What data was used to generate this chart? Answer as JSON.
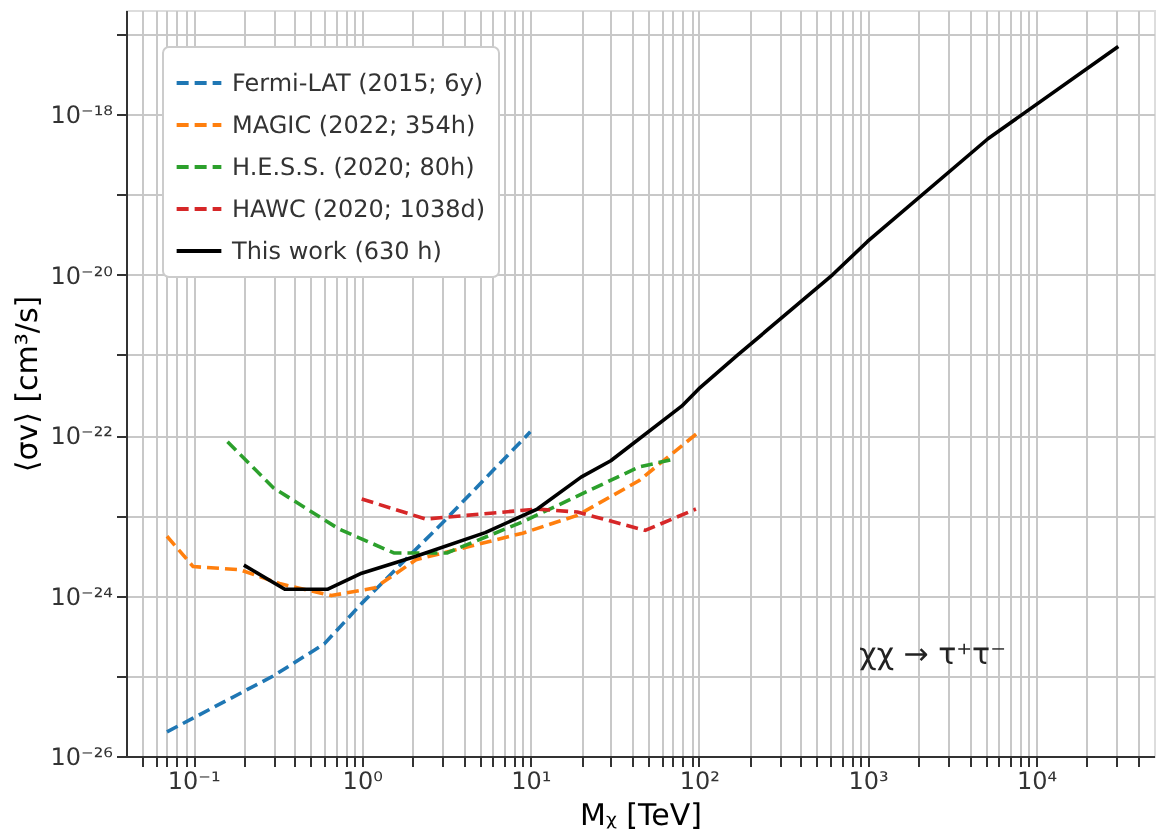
{
  "chart_data": {
    "type": "line",
    "xlabel": "Mᵪ [TeV]",
    "ylabel": "⟨σv⟩ [cm³/s]",
    "log": "xy",
    "grid": true,
    "legend": "top left",
    "marker": "none",
    "xlim": [
      0.04,
      50000
    ],
    "ylim": [
      1e-26,
      2e-17
    ],
    "xticks": [
      {
        "value": 0.05,
        "label": null
      },
      {
        "value": 0.06,
        "label": null
      },
      {
        "value": 0.07,
        "label": null
      },
      {
        "value": 0.08,
        "label": null
      },
      {
        "value": 0.09,
        "label": null
      },
      {
        "value": 0.1,
        "label": "10⁻¹"
      },
      {
        "value": 0.2,
        "label": null
      },
      {
        "value": 0.3,
        "label": null
      },
      {
        "value": 0.4,
        "label": null
      },
      {
        "value": 0.5,
        "label": null
      },
      {
        "value": 0.6,
        "label": null
      },
      {
        "value": 0.7,
        "label": null
      },
      {
        "value": 0.8,
        "label": null
      },
      {
        "value": 0.9,
        "label": null
      },
      {
        "value": 1,
        "label": "10⁰"
      },
      {
        "value": 2,
        "label": null
      },
      {
        "value": 3,
        "label": null
      },
      {
        "value": 4,
        "label": null
      },
      {
        "value": 5,
        "label": null
      },
      {
        "value": 6,
        "label": null
      },
      {
        "value": 7,
        "label": null
      },
      {
        "value": 8,
        "label": null
      },
      {
        "value": 9,
        "label": null
      },
      {
        "value": 10,
        "label": "10¹"
      },
      {
        "value": 20,
        "label": null
      },
      {
        "value": 30,
        "label": null
      },
      {
        "value": 40,
        "label": null
      },
      {
        "value": 50,
        "label": null
      },
      {
        "value": 60,
        "label": null
      },
      {
        "value": 70,
        "label": null
      },
      {
        "value": 80,
        "label": null
      },
      {
        "value": 90,
        "label": null
      },
      {
        "value": 100,
        "label": "10²"
      },
      {
        "value": 200,
        "label": null
      },
      {
        "value": 300,
        "label": null
      },
      {
        "value": 400,
        "label": null
      },
      {
        "value": 500,
        "label": null
      },
      {
        "value": 600,
        "label": null
      },
      {
        "value": 700,
        "label": null
      },
      {
        "value": 800,
        "label": null
      },
      {
        "value": 900,
        "label": null
      },
      {
        "value": 1000,
        "label": "10³"
      },
      {
        "value": 2000,
        "label": null
      },
      {
        "value": 3000,
        "label": null
      },
      {
        "value": 4000,
        "label": null
      },
      {
        "value": 5000,
        "label": null
      },
      {
        "value": 6000,
        "label": null
      },
      {
        "value": 7000,
        "label": null
      },
      {
        "value": 8000,
        "label": null
      },
      {
        "value": 9000,
        "label": null
      },
      {
        "value": 10000,
        "label": "10⁴"
      },
      {
        "value": 20000,
        "label": null
      },
      {
        "value": 30000,
        "label": null
      },
      {
        "value": 40000,
        "label": null
      }
    ],
    "yticks": [
      {
        "value": 1e-26,
        "label": "10⁻²⁶"
      },
      {
        "value": 1e-25,
        "label": null
      },
      {
        "value": 1e-24,
        "label": "10⁻²⁴"
      },
      {
        "value": 1e-23,
        "label": null
      },
      {
        "value": 1e-22,
        "label": "10⁻²²"
      },
      {
        "value": 1e-21,
        "label": null
      },
      {
        "value": 1e-20,
        "label": "10⁻²⁰"
      },
      {
        "value": 1e-19,
        "label": null
      },
      {
        "value": 1e-18,
        "label": "10⁻¹⁸"
      },
      {
        "value": 1e-17,
        "label": null
      }
    ],
    "series": [
      {
        "name": "Fermi-LAT (2015; 6y)",
        "color": "#1f77b4",
        "line_style": "dashed",
        "x": [
          0.07,
          0.3,
          0.6,
          1,
          3,
          10
        ],
        "values": [
          2e-26,
          1e-25,
          2.5e-25,
          8e-25,
          8e-24,
          1.1e-22
        ]
      },
      {
        "name": "MAGIC (2022; 354h)",
        "color": "#ff7f0e",
        "line_style": "dashed",
        "x": [
          0.07,
          0.1,
          0.19,
          0.33,
          0.66,
          1.2,
          2.1,
          9,
          19,
          44,
          100
        ],
        "values": [
          5.5e-24,
          2.3e-24,
          2.1e-24,
          1.4e-24,
          1e-24,
          1.25e-24,
          2.8e-24,
          6e-24,
          1e-23,
          2.7e-23,
          1.1e-22
        ]
      },
      {
        "name": "H.E.S.S. (2020; 80h)",
        "color": "#2ca02c",
        "line_style": "dashed",
        "x": [
          0.16,
          0.3,
          0.73,
          1.55,
          3.2,
          9,
          44,
          70
        ],
        "values": [
          8.3e-23,
          2.2e-23,
          6.8e-24,
          3.4e-24,
          3.4e-24,
          8.3e-24,
          4e-23,
          5e-23
        ]
      },
      {
        "name": "HAWC (2020; 1038d)",
        "color": "#d62728",
        "line_style": "dashed",
        "x": [
          1,
          2.4,
          11,
          19,
          48,
          96
        ],
        "values": [
          1.6e-23,
          9e-24,
          1.2e-23,
          1.1e-23,
          6.5e-24,
          1.2e-23
        ]
      },
      {
        "name": "This work (630 h)",
        "color": "#000000",
        "line_style": "solid",
        "x": [
          0.2,
          0.35,
          0.63,
          1,
          2.1,
          5.4,
          11,
          20,
          30,
          79,
          100,
          170,
          620,
          1000,
          5200,
          30700
        ],
        "values": [
          2.4e-24,
          1.2e-24,
          1.2e-24,
          1.9e-24,
          3.1e-24,
          6.1e-24,
          1.2e-23,
          3e-23,
          4.8e-23,
          2.3e-22,
          3.8e-22,
          1e-21,
          1e-20,
          2.6e-20,
          5e-19,
          7e-18
        ]
      }
    ],
    "annotations": [
      "χχ → τ⁺τ⁻"
    ]
  }
}
